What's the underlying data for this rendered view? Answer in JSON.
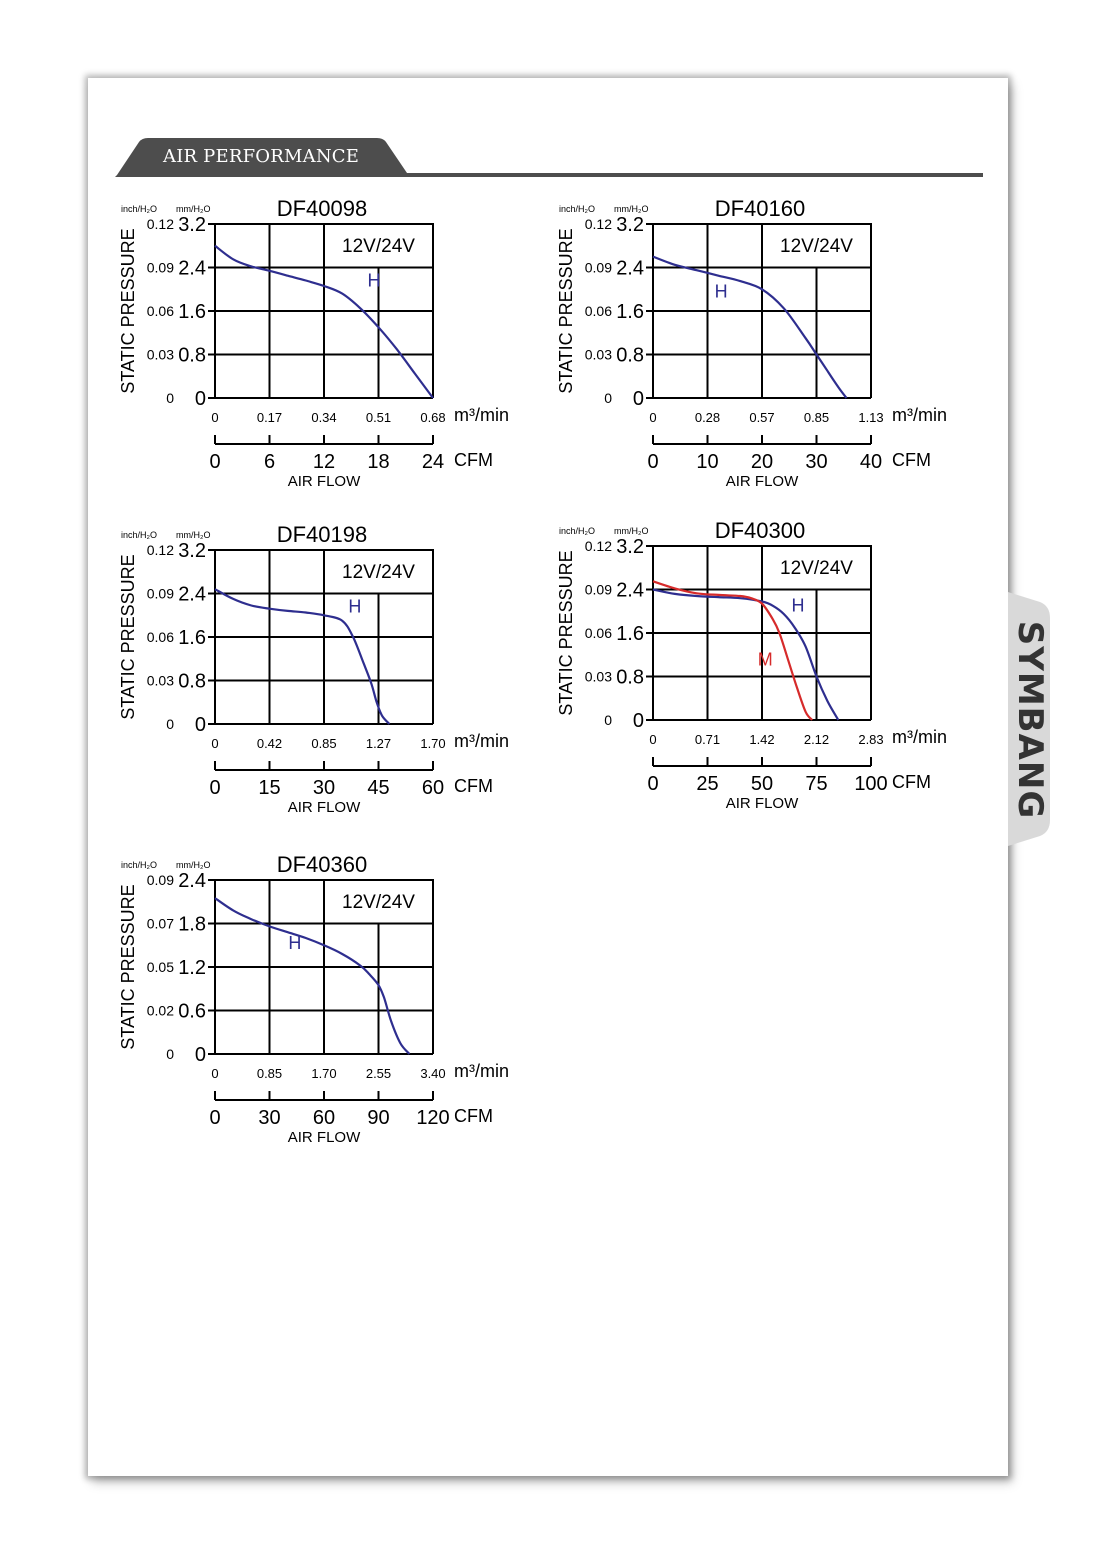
{
  "section": {
    "title": "AIR PERFORMANCE"
  },
  "brand": {
    "name": "SYMBANG"
  },
  "colors": {
    "curve_h": "#2e2e8f",
    "curve_m": "#d62b2b",
    "grid": "#000000",
    "header_bg": "#4d4d4d"
  },
  "chart_data": [
    {
      "type": "line",
      "title": "DF40098",
      "voltage_label": "12V/24V",
      "ylabel": "STATIC PRESSURE",
      "xlabel": "AIR FLOW",
      "y_unit_left": "inch/H₂O",
      "y_unit_right": "mm/H₂O",
      "y_ticks_inch": [
        "0.12",
        "0.09",
        "0.06",
        "0.03",
        "0"
      ],
      "y_ticks_mm": [
        "3.2",
        "2.4",
        "1.6",
        "0.8",
        "0"
      ],
      "ylim": [
        0,
        3.2
      ],
      "x_ticks_m3": [
        "0",
        "0.17",
        "0.34",
        "0.51",
        "0.68"
      ],
      "x_unit_m3": "m³/min",
      "x_ticks_cfm": [
        "0",
        "6",
        "12",
        "18",
        "24"
      ],
      "x_unit_cfm": "CFM",
      "xlim": [
        0,
        24
      ],
      "grid": true,
      "series": [
        {
          "name": "H",
          "color": "#2e2e8f",
          "label_at": [
            17.5,
            2.05
          ],
          "x": [
            0,
            2,
            4,
            6,
            8,
            10,
            12,
            14,
            16,
            18,
            20,
            22,
            24
          ],
          "y": [
            2.8,
            2.55,
            2.42,
            2.34,
            2.25,
            2.16,
            2.06,
            1.92,
            1.65,
            1.3,
            0.9,
            0.45,
            0.0
          ]
        }
      ]
    },
    {
      "type": "line",
      "title": "DF40160",
      "voltage_label": "12V/24V",
      "ylabel": "STATIC PRESSURE",
      "xlabel": "AIR FLOW",
      "y_unit_left": "inch/H₂O",
      "y_unit_right": "mm/H₂O",
      "y_ticks_inch": [
        "0.12",
        "0.09",
        "0.06",
        "0.03",
        "0"
      ],
      "y_ticks_mm": [
        "3.2",
        "2.4",
        "1.6",
        "0.8",
        "0"
      ],
      "ylim": [
        0,
        3.2
      ],
      "x_ticks_m3": [
        "0",
        "0.28",
        "0.57",
        "0.85",
        "1.13"
      ],
      "x_unit_m3": "m³/min",
      "x_ticks_cfm": [
        "0",
        "10",
        "20",
        "30",
        "40"
      ],
      "x_unit_cfm": "CFM",
      "xlim": [
        0,
        40
      ],
      "grid": true,
      "series": [
        {
          "name": "H",
          "color": "#2e2e8f",
          "label_at": [
            12.5,
            1.85
          ],
          "x": [
            0,
            4,
            8,
            12,
            16,
            20,
            24,
            28,
            30,
            32,
            34,
            35.5
          ],
          "y": [
            2.6,
            2.45,
            2.35,
            2.25,
            2.15,
            2.0,
            1.65,
            1.1,
            0.8,
            0.5,
            0.2,
            0.0
          ]
        }
      ]
    },
    {
      "type": "line",
      "title": "DF40198",
      "voltage_label": "12V/24V",
      "ylabel": "STATIC PRESSURE",
      "xlabel": "AIR FLOW",
      "y_unit_left": "inch/H₂O",
      "y_unit_right": "mm/H₂O",
      "y_ticks_inch": [
        "0.12",
        "0.09",
        "0.06",
        "0.03",
        "0"
      ],
      "y_ticks_mm": [
        "3.2",
        "2.4",
        "1.6",
        "0.8",
        "0"
      ],
      "ylim": [
        0,
        3.2
      ],
      "x_ticks_m3": [
        "0",
        "0.42",
        "0.85",
        "1.27",
        "1.70"
      ],
      "x_unit_m3": "m³/min",
      "x_ticks_cfm": [
        "0",
        "15",
        "30",
        "45",
        "60"
      ],
      "x_unit_cfm": "CFM",
      "xlim": [
        0,
        60
      ],
      "grid": true,
      "series": [
        {
          "name": "H",
          "color": "#2e2e8f",
          "label_at": [
            38.5,
            2.05
          ],
          "x": [
            0,
            5,
            10,
            15,
            20,
            25,
            30,
            35,
            38,
            41,
            43,
            44.5,
            46,
            48
          ],
          "y": [
            2.48,
            2.3,
            2.18,
            2.12,
            2.08,
            2.05,
            2.0,
            1.9,
            1.6,
            1.1,
            0.75,
            0.4,
            0.15,
            0.0
          ]
        }
      ]
    },
    {
      "type": "line",
      "title": "DF40300",
      "voltage_label": "12V/24V",
      "ylabel": "STATIC PRESSURE",
      "xlabel": "AIR FLOW",
      "y_unit_left": "inch/H₂O",
      "y_unit_right": "mm/H₂O",
      "y_ticks_inch": [
        "0.12",
        "0.09",
        "0.06",
        "0.03",
        "0"
      ],
      "y_ticks_mm": [
        "3.2",
        "2.4",
        "1.6",
        "0.8",
        "0"
      ],
      "ylim": [
        0,
        3.2
      ],
      "x_ticks_m3": [
        "0",
        "0.71",
        "1.42",
        "2.12",
        "2.83"
      ],
      "x_unit_m3": "m³/min",
      "x_ticks_cfm": [
        "0",
        "25",
        "50",
        "75",
        "100"
      ],
      "x_unit_cfm": "CFM",
      "xlim": [
        0,
        100
      ],
      "grid": true,
      "series": [
        {
          "name": "H",
          "color": "#2e2e8f",
          "label_at": [
            66.5,
            2.0
          ],
          "x": [
            0,
            10,
            20,
            30,
            40,
            50,
            55,
            60,
            65,
            70,
            75,
            80,
            85
          ],
          "y": [
            2.4,
            2.32,
            2.28,
            2.26,
            2.24,
            2.18,
            2.1,
            1.95,
            1.7,
            1.35,
            0.8,
            0.35,
            0.0
          ]
        },
        {
          "name": "M",
          "color": "#d62b2b",
          "label_at": [
            51.5,
            1.0
          ],
          "x": [
            0,
            10,
            20,
            30,
            40,
            45,
            50,
            55,
            58,
            62,
            66,
            70,
            73
          ],
          "y": [
            2.55,
            2.42,
            2.33,
            2.3,
            2.28,
            2.24,
            2.14,
            1.85,
            1.6,
            1.1,
            0.6,
            0.15,
            0.0
          ]
        }
      ]
    },
    {
      "type": "line",
      "title": "DF40360",
      "voltage_label": "12V/24V",
      "ylabel": "STATIC PRESSURE",
      "xlabel": "AIR FLOW",
      "y_unit_left": "inch/H₂O",
      "y_unit_right": "mm/H₂O",
      "y_ticks_inch": [
        "0.09",
        "0.07",
        "0.05",
        "0.02",
        "0"
      ],
      "y_ticks_mm": [
        "2.4",
        "1.8",
        "1.2",
        "0.6",
        "0"
      ],
      "ylim": [
        0,
        2.4
      ],
      "x_ticks_m3": [
        "0",
        "0.85",
        "1.70",
        "2.55",
        "3.40"
      ],
      "x_unit_m3": "m³/min",
      "x_ticks_cfm": [
        "0",
        "30",
        "60",
        "90",
        "120"
      ],
      "x_unit_cfm": "CFM",
      "xlim": [
        0,
        120
      ],
      "grid": true,
      "series": [
        {
          "name": "H",
          "color": "#2e2e8f",
          "label_at": [
            44,
            1.45
          ],
          "x": [
            0,
            10,
            20,
            30,
            40,
            50,
            60,
            70,
            80,
            85,
            90,
            93,
            97,
            102,
            107
          ],
          "y": [
            2.15,
            1.98,
            1.86,
            1.76,
            1.68,
            1.6,
            1.5,
            1.38,
            1.22,
            1.1,
            0.95,
            0.78,
            0.45,
            0.15,
            0.0
          ]
        }
      ]
    }
  ]
}
